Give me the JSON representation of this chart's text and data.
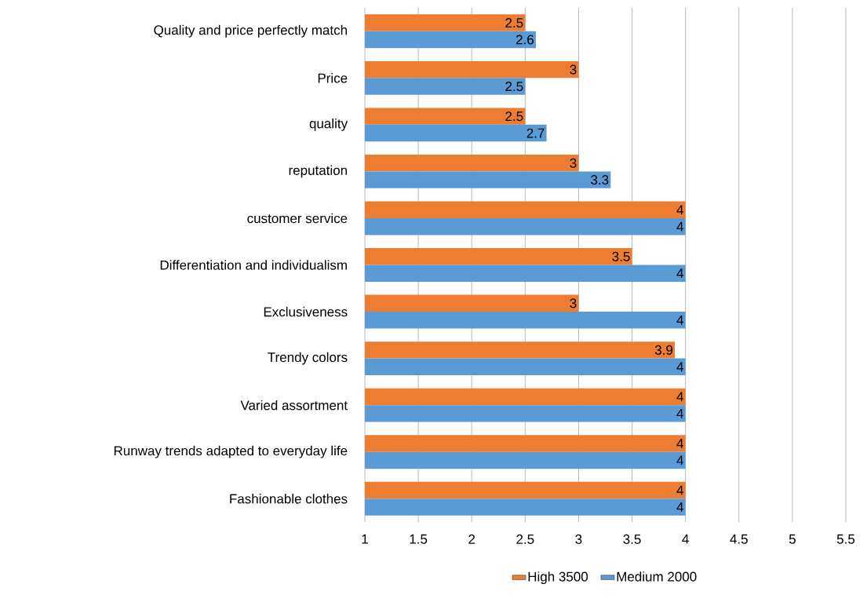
{
  "chart_data": {
    "type": "bar",
    "orientation": "horizontal",
    "categories": [
      "Quality and price perfectly match",
      "Price",
      "quality",
      "reputation",
      "customer service",
      "Differentiation and individualism",
      "Exclusiveness",
      "Trendy colors",
      "Varied assortment",
      "Runway trends adapted to everyday life",
      "Fashionable clothes"
    ],
    "series": [
      {
        "name": "High 3500",
        "color": "#ed7d31",
        "values": [
          2.5,
          3,
          2.5,
          3,
          4,
          3.5,
          3,
          3.9,
          4,
          4,
          4
        ]
      },
      {
        "name": "Medium 2000",
        "color": "#5b9bd5",
        "values": [
          2.6,
          2.5,
          2.7,
          3.3,
          4,
          4,
          4,
          4,
          4,
          4,
          4
        ]
      }
    ],
    "xlim": [
      1,
      5.5
    ],
    "xticks": [
      1,
      1.5,
      2,
      2.5,
      3,
      3.5,
      4,
      4.5,
      5,
      5.5
    ],
    "grid": "x",
    "legend": "bottom",
    "data_labels": true
  }
}
